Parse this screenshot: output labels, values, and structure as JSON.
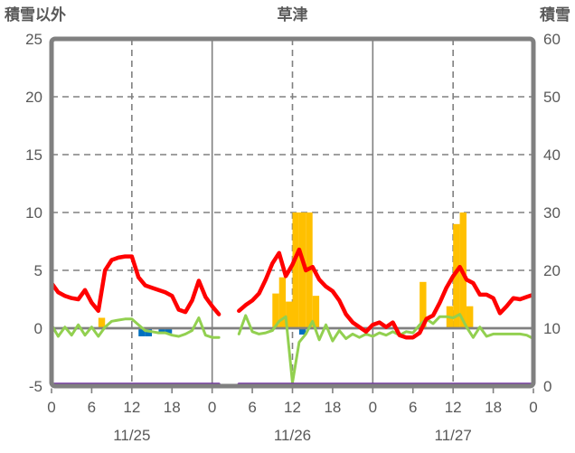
{
  "header": {
    "left_axis_title": "積雪以外",
    "chart_title": "草津",
    "right_axis_title": "積雪"
  },
  "colors": {
    "red_line": "#FF0000",
    "green_line": "#92D050",
    "orange_bars": "#FFC000",
    "blue_bars": "#0070C0",
    "purple_line": "#7030A0",
    "grid_gray": "#808080",
    "text_gray": "#595959",
    "background": "#FFFFFF"
  },
  "chart_data": {
    "type": "line+bar",
    "title": "草津",
    "left_axis_label": "積雪以外",
    "right_axis_label": "積雪",
    "x_hours_span": 72,
    "x_tick_interval_hours": 6,
    "x_tick_labels": [
      "0",
      "6",
      "12",
      "18",
      "0",
      "6",
      "12",
      "18",
      "0",
      "6",
      "12",
      "18",
      "0"
    ],
    "date_labels": [
      {
        "label": "11/25",
        "center_hour": 12
      },
      {
        "label": "11/26",
        "center_hour": 36
      },
      {
        "label": "11/27",
        "center_hour": 60
      }
    ],
    "left_axis": {
      "min": -5,
      "max": 25,
      "ticks": [
        25,
        20,
        15,
        10,
        5,
        0,
        -5
      ],
      "zero_line_solid": true
    },
    "right_axis": {
      "min": 0,
      "max": 60,
      "ticks": [
        60,
        50,
        40,
        30,
        20,
        10,
        0
      ]
    },
    "day_boundary_hours_solid": [
      24,
      48
    ],
    "noon_hours_dashed": [
      12,
      36,
      60
    ],
    "grid": {
      "horizontal_dashed_at": [
        20,
        15,
        10,
        5
      ]
    },
    "series": [
      {
        "name": "orange-bars",
        "type": "bar",
        "axis": "left",
        "color_key": "orange_bars",
        "bars": [
          {
            "hour": 7,
            "value": 0.9
          },
          {
            "hour": 33,
            "value": 3.0
          },
          {
            "hour": 34,
            "value": 4.4
          },
          {
            "hour": 35,
            "value": 2.3
          },
          {
            "hour": 36,
            "value": 10
          },
          {
            "hour": 37,
            "value": 10
          },
          {
            "hour": 38,
            "value": 10
          },
          {
            "hour": 39,
            "value": 2.8
          },
          {
            "hour": 55,
            "value": 4.0
          },
          {
            "hour": 59,
            "value": 1.9
          },
          {
            "hour": 60,
            "value": 9.0
          },
          {
            "hour": 61,
            "value": 10
          },
          {
            "hour": 62,
            "value": 1.9
          }
        ]
      },
      {
        "name": "blue-bars",
        "type": "bar",
        "axis": "left",
        "color_key": "blue_bars",
        "bars": [
          {
            "hour": 13,
            "value": -0.7
          },
          {
            "hour": 14,
            "value": -0.7
          },
          {
            "hour": 16,
            "value": -0.45
          },
          {
            "hour": 17,
            "value": -0.45
          },
          {
            "hour": 37,
            "value": -0.55
          }
        ]
      },
      {
        "name": "green-line",
        "type": "line",
        "axis": "left",
        "color_key": "green_line",
        "width": 3,
        "values": [
          0.3,
          -0.7,
          0.1,
          -0.6,
          0.3,
          -0.6,
          0.1,
          -0.7,
          0.1,
          0.6,
          0.7,
          0.8,
          0.8,
          0.3,
          -0.2,
          -0.3,
          -0.4,
          -0.4,
          -0.6,
          -0.7,
          -0.5,
          -0.2,
          0.9,
          -0.6,
          -0.8,
          -0.8,
          null,
          null,
          -0.5,
          1.1,
          -0.3,
          -0.5,
          -0.4,
          -0.2,
          0.6,
          1.0,
          -4.7,
          -1.2,
          -0.5,
          0.6,
          -1.0,
          0.3,
          -1.1,
          -0.2,
          -0.9,
          -0.5,
          -0.8,
          -0.5,
          -0.7,
          -0.4,
          -0.6,
          -0.3,
          -0.6,
          -0.3,
          -0.4,
          0.3,
          0.8,
          0.4,
          1.0,
          1.0,
          0.9,
          1.2,
          0.1,
          -0.8,
          0.1,
          -0.7,
          -0.5,
          -0.5,
          -0.5,
          -0.5,
          -0.5,
          -0.6,
          -0.9
        ]
      },
      {
        "name": "red-line",
        "type": "line",
        "axis": "left",
        "color_key": "red_line",
        "width": 4.5,
        "values": [
          3.9,
          3.1,
          2.8,
          2.6,
          2.5,
          3.3,
          2.2,
          1.5,
          5.0,
          5.9,
          6.1,
          6.2,
          6.2,
          4.4,
          3.7,
          3.5,
          3.3,
          3.1,
          2.8,
          1.6,
          1.4,
          2.4,
          4.1,
          2.7,
          1.9,
          1.2,
          null,
          null,
          1.5,
          2.0,
          2.4,
          3.0,
          4.2,
          5.6,
          6.5,
          4.5,
          5.5,
          6.8,
          5.0,
          5.3,
          4.2,
          3.6,
          3.2,
          2.4,
          1.2,
          0.5,
          0.1,
          -0.3,
          0.3,
          0.5,
          0.1,
          0.5,
          -0.6,
          -0.8,
          -0.8,
          -0.4,
          0.8,
          1.1,
          2.2,
          3.5,
          4.5,
          5.3,
          4.2,
          3.9,
          2.9,
          2.9,
          2.6,
          1.3,
          1.9,
          2.6,
          2.5,
          2.7,
          2.9
        ]
      },
      {
        "name": "purple-line",
        "type": "line",
        "axis": "right",
        "color_key": "purple_line",
        "width": 3.5,
        "values_constant": 0,
        "gap_hours": [
          26,
          27
        ]
      }
    ]
  }
}
